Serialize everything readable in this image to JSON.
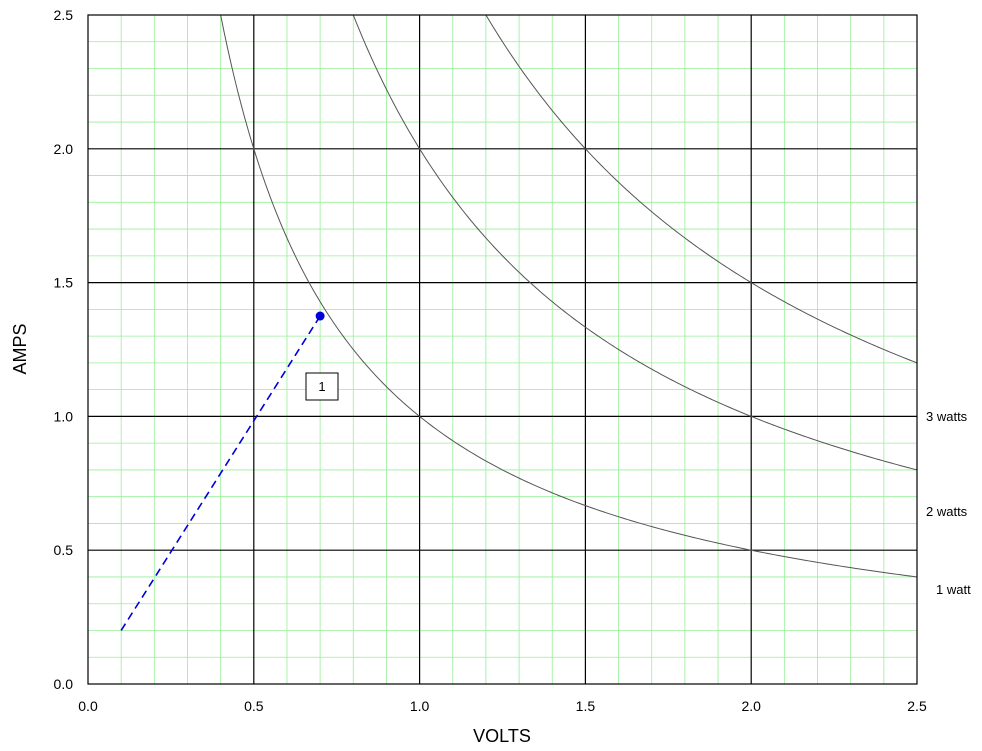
{
  "chart_data": {
    "type": "line",
    "title": "",
    "xlabel": "VOLTS",
    "ylabel": "AMPS",
    "xlim": [
      0,
      2.5
    ],
    "ylim": [
      0,
      2.5
    ],
    "x_ticks": [
      "0.0",
      "0.5",
      "1.0",
      "1.5",
      "2.0",
      "2.5"
    ],
    "y_ticks": [
      "0.0",
      "0.5",
      "1.0",
      "1.5",
      "2.0",
      "2.5"
    ],
    "grid": {
      "major": true,
      "minor": true,
      "major_step": 0.5,
      "minor_step": 0.1
    },
    "series": [
      {
        "name": "1 watt",
        "kind": "power-curve",
        "watts": 1,
        "x": [
          0.4,
          0.5,
          0.8,
          1.0,
          1.5,
          2.0,
          2.5
        ],
        "y": [
          2.5,
          2.0,
          1.25,
          1.0,
          0.667,
          0.5,
          0.4
        ]
      },
      {
        "name": "2 watts",
        "kind": "power-curve",
        "watts": 2,
        "x": [
          0.8,
          1.0,
          1.5,
          2.0,
          2.5
        ],
        "y": [
          2.5,
          2.0,
          1.333,
          1.0,
          0.8
        ]
      },
      {
        "name": "3 watts",
        "kind": "power-curve",
        "watts": 3,
        "x": [
          1.2,
          1.5,
          2.0,
          2.5
        ],
        "y": [
          2.5,
          2.0,
          1.5,
          1.2
        ]
      },
      {
        "name": "",
        "kind": "dashed-line",
        "x": [
          0.1,
          0.7
        ],
        "y": [
          0.2,
          1.375
        ]
      }
    ],
    "curve_labels": [
      "3 watts",
      "2 watts",
      "1 watt"
    ],
    "point": {
      "x": 0.7,
      "y": 1.375,
      "label": "1"
    },
    "colors": {
      "curve": "#555555",
      "major_grid": "#000000",
      "minor_grid": "#99ee99",
      "dashed": "#0000dd"
    }
  }
}
